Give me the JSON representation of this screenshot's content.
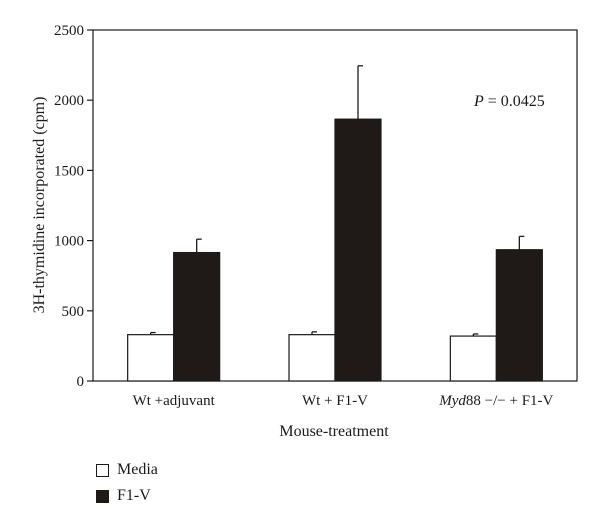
{
  "chart_data": {
    "type": "bar",
    "title": "",
    "xlabel": "Mouse-treatment",
    "ylabel": "3H-thymidine incorporated (cpm)",
    "ylim": [
      0,
      2500
    ],
    "yticks": [
      0,
      500,
      1000,
      1500,
      2000,
      2500
    ],
    "grid": false,
    "legend_position": "bottom-left",
    "categories": [
      "Wt +adjuvant",
      "Wt + F1-V",
      "Myd88 −/− + F1-V"
    ],
    "category_parts": [
      {
        "italic": "",
        "rest": "Wt +adjuvant"
      },
      {
        "italic": "",
        "rest": "Wt + F1-V"
      },
      {
        "italic": "Myd",
        "rest": "88 −/− + F1-V"
      }
    ],
    "series": [
      {
        "name": "Media",
        "color": "#ffffff",
        "values": [
          330,
          330,
          320
        ],
        "errors": [
          15,
          20,
          15
        ]
      },
      {
        "name": "F1-V",
        "color": "#1f1a17",
        "values": [
          915,
          1865,
          935
        ],
        "errors": [
          95,
          380,
          95
        ]
      }
    ],
    "annotation": {
      "italic": "P",
      "rest": " = 0.0425"
    }
  }
}
